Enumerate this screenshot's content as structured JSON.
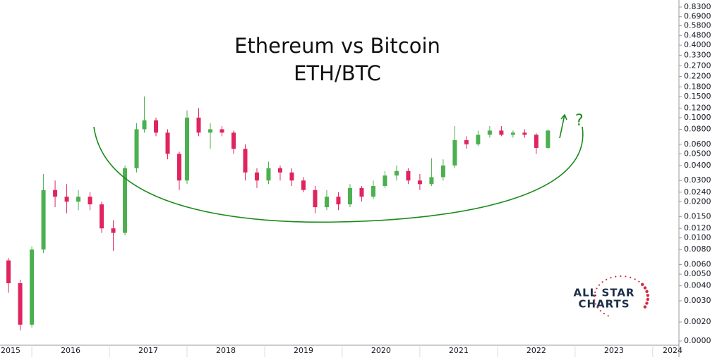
{
  "chart_data": {
    "type": "candlestick",
    "title": "Ethereum vs Bitcoin",
    "subtitle": "ETH/BTC",
    "annotation": "?",
    "logo": [
      "ALL STAR",
      "CHARTS"
    ],
    "log_scale": true,
    "up_color": "#4caf50",
    "down_color": "#e0245e",
    "curve_color": "#1a8a1a",
    "xlim": [
      2015.09,
      2023.82
    ],
    "xticks": [
      2015,
      2016,
      2017,
      2018,
      2019,
      2020,
      2021,
      2022,
      2023,
      2024
    ],
    "ylim": [
      0.00139,
      0.95
    ],
    "yticks": [
      {
        "value": 0.83,
        "label": "0.8300"
      },
      {
        "value": 0.69,
        "label": "0.6900"
      },
      {
        "value": 0.58,
        "label": "0.5800"
      },
      {
        "value": 0.48,
        "label": "0.4800"
      },
      {
        "value": 0.4,
        "label": "0.4000"
      },
      {
        "value": 0.33,
        "label": "0.3300"
      },
      {
        "value": 0.27,
        "label": "0.2700"
      },
      {
        "value": 0.22,
        "label": "0.2200"
      },
      {
        "value": 0.18,
        "label": "0.1800"
      },
      {
        "value": 0.15,
        "label": "0.1500"
      },
      {
        "value": 0.12,
        "label": "0.1200"
      },
      {
        "value": 0.1,
        "label": "0.1000"
      },
      {
        "value": 0.08,
        "label": "0.0800"
      },
      {
        "value": 0.06,
        "label": "0.0600"
      },
      {
        "value": 0.05,
        "label": "0.0500"
      },
      {
        "value": 0.04,
        "label": "0.0400"
      },
      {
        "value": 0.03,
        "label": "0.0300"
      },
      {
        "value": 0.024,
        "label": "0.0240"
      },
      {
        "value": 0.02,
        "label": "0.0200"
      },
      {
        "value": 0.015,
        "label": "0.0150"
      },
      {
        "value": 0.012,
        "label": "0.0120"
      },
      {
        "value": 0.01,
        "label": "0.0100"
      },
      {
        "value": 0.008,
        "label": "0.0080"
      },
      {
        "value": 0.006,
        "label": "0.0060"
      },
      {
        "value": 0.005,
        "label": "0.0050"
      },
      {
        "value": 0.004,
        "label": "0.0040"
      },
      {
        "value": 0.003,
        "label": "0.0030"
      },
      {
        "value": 0.002,
        "label": "0.0020"
      },
      {
        "value": 0,
        "label": "0.0000"
      }
    ],
    "x": [
      2015.2,
      2015.35,
      2015.5,
      2015.65,
      2015.8,
      2015.95,
      2016.1,
      2016.25,
      2016.4,
      2016.55,
      2016.7,
      2016.85,
      2016.95,
      2017.1,
      2017.25,
      2017.4,
      2017.5,
      2017.65,
      2017.8,
      2017.95,
      2018.1,
      2018.25,
      2018.4,
      2018.55,
      2018.7,
      2018.85,
      2019.0,
      2019.15,
      2019.3,
      2019.45,
      2019.6,
      2019.75,
      2019.9,
      2020.05,
      2020.2,
      2020.35,
      2020.5,
      2020.65,
      2020.8,
      2020.95,
      2021.1,
      2021.25,
      2021.4,
      2021.55,
      2021.7,
      2021.85,
      2022.0,
      2022.15
    ],
    "open": [
      0.0065,
      0.0042,
      0.0019,
      0.008,
      0.025,
      0.022,
      0.02,
      0.022,
      0.019,
      0.012,
      0.011,
      0.038,
      0.08,
      0.095,
      0.075,
      0.05,
      0.03,
      0.1,
      0.075,
      0.08,
      0.075,
      0.055,
      0.035,
      0.03,
      0.038,
      0.035,
      0.03,
      0.025,
      0.018,
      0.022,
      0.019,
      0.026,
      0.022,
      0.027,
      0.033,
      0.036,
      0.03,
      0.028,
      0.032,
      0.04,
      0.065,
      0.06,
      0.072,
      0.078,
      0.072,
      0.075,
      0.072,
      0.056
    ],
    "high": [
      0.0068,
      0.0045,
      0.0085,
      0.034,
      0.03,
      0.028,
      0.025,
      0.024,
      0.02,
      0.014,
      0.04,
      0.09,
      0.15,
      0.1,
      0.08,
      0.052,
      0.115,
      0.12,
      0.09,
      0.085,
      0.078,
      0.06,
      0.038,
      0.043,
      0.04,
      0.038,
      0.032,
      0.027,
      0.025,
      0.024,
      0.028,
      0.027,
      0.03,
      0.036,
      0.04,
      0.038,
      0.034,
      0.046,
      0.045,
      0.085,
      0.07,
      0.078,
      0.085,
      0.085,
      0.078,
      0.08,
      0.074,
      0.08
    ],
    "low": [
      0.0035,
      0.0017,
      0.0018,
      0.0075,
      0.018,
      0.016,
      0.017,
      0.017,
      0.011,
      0.0078,
      0.0105,
      0.035,
      0.075,
      0.07,
      0.045,
      0.025,
      0.028,
      0.07,
      0.055,
      0.07,
      0.05,
      0.03,
      0.026,
      0.028,
      0.03,
      0.027,
      0.024,
      0.016,
      0.017,
      0.017,
      0.018,
      0.02,
      0.021,
      0.026,
      0.03,
      0.028,
      0.025,
      0.027,
      0.03,
      0.038,
      0.055,
      0.058,
      0.068,
      0.07,
      0.068,
      0.068,
      0.05,
      0.055
    ],
    "close": [
      0.0042,
      0.0019,
      0.008,
      0.025,
      0.022,
      0.02,
      0.022,
      0.019,
      0.012,
      0.011,
      0.038,
      0.08,
      0.095,
      0.075,
      0.05,
      0.03,
      0.1,
      0.075,
      0.08,
      0.075,
      0.055,
      0.035,
      0.03,
      0.038,
      0.035,
      0.03,
      0.025,
      0.018,
      0.022,
      0.019,
      0.026,
      0.022,
      0.027,
      0.033,
      0.036,
      0.03,
      0.028,
      0.032,
      0.04,
      0.065,
      0.06,
      0.072,
      0.078,
      0.072,
      0.075,
      0.072,
      0.056,
      0.078
    ]
  }
}
